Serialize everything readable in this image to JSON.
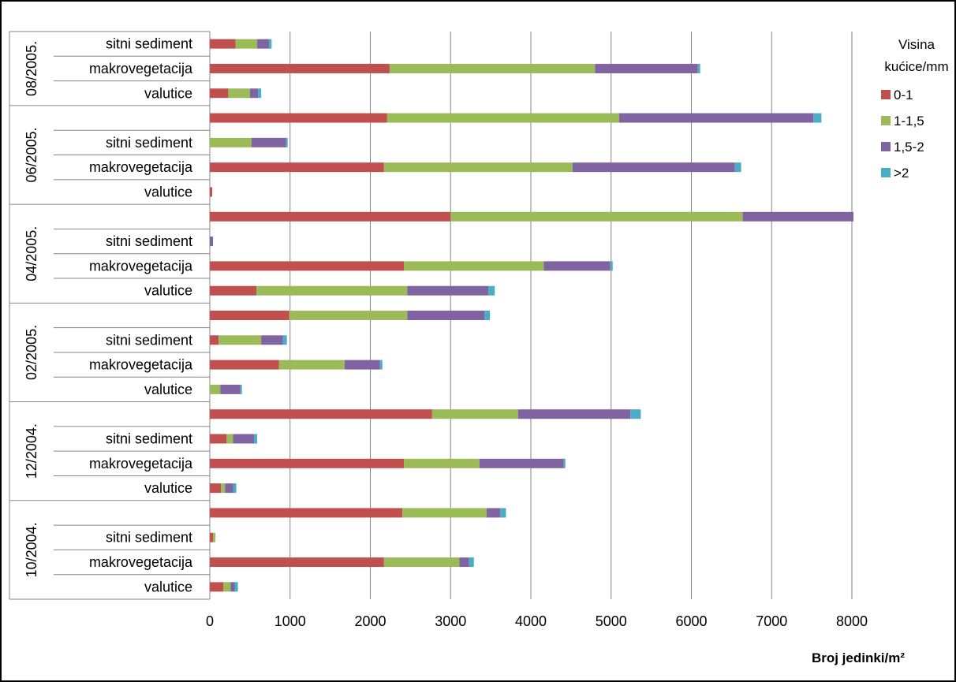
{
  "chart_data": {
    "type": "bar",
    "orientation": "horizontal",
    "stacked": true,
    "title": "",
    "xlabel": "Broj jedinki/m²",
    "ylabel": "",
    "xlim": [
      0,
      8000
    ],
    "x_ticks": [
      0,
      1000,
      2000,
      3000,
      4000,
      5000,
      6000,
      7000,
      8000
    ],
    "grid": "vertical",
    "legend_title": "Visina kućice/mm",
    "legend_position": "right",
    "series": [
      {
        "name": "0-1",
        "color": "#c0504d"
      },
      {
        "name": "1-1,5",
        "color": "#9bbb59"
      },
      {
        "name": "1,5-2",
        "color": "#8064a2"
      },
      {
        "name": ">2",
        "color": "#4bacc6"
      }
    ],
    "groups": [
      {
        "label": "08/2005.",
        "rows": [
          {
            "label": "sitni sediment",
            "values": [
              320,
              270,
              150,
              30
            ]
          },
          {
            "label": "makrovegetacija",
            "values": [
              2240,
              2560,
              1280,
              30
            ]
          },
          {
            "label": "valutice",
            "values": [
              230,
              270,
              100,
              40
            ]
          }
        ]
      },
      {
        "label": "06/2005.",
        "rows": [
          {
            "label": "",
            "values": [
              2210,
              2890,
              2420,
              100
            ]
          },
          {
            "label": "sitni sediment",
            "values": [
              0,
              520,
              430,
              20
            ]
          },
          {
            "label": "makrovegetacija",
            "values": [
              2170,
              2350,
              2020,
              80
            ]
          },
          {
            "label": "valutice",
            "values": [
              30,
              0,
              0,
              0
            ]
          }
        ]
      },
      {
        "label": "04/2005.",
        "rows": [
          {
            "label": "",
            "values": [
              3000,
              3640,
              1380,
              0
            ]
          },
          {
            "label": "sitni sediment",
            "values": [
              0,
              0,
              40,
              0
            ]
          },
          {
            "label": "makrovegetacija",
            "values": [
              2420,
              1740,
              830,
              30
            ]
          },
          {
            "label": "valutice",
            "values": [
              580,
              1880,
              1010,
              80
            ]
          }
        ]
      },
      {
        "label": "02/2005.",
        "rows": [
          {
            "label": "",
            "values": [
              990,
              1470,
              960,
              70
            ]
          },
          {
            "label": "sitni sediment",
            "values": [
              110,
              530,
              270,
              50
            ]
          },
          {
            "label": "makrovegetacija",
            "values": [
              860,
              820,
              440,
              30
            ]
          },
          {
            "label": "valutice",
            "values": [
              0,
              130,
              250,
              20
            ]
          }
        ]
      },
      {
        "label": "12/2004.",
        "rows": [
          {
            "label": "",
            "values": [
              2770,
              1070,
              1400,
              130
            ]
          },
          {
            "label": "sitni sediment",
            "values": [
              210,
              80,
              260,
              40
            ]
          },
          {
            "label": "makrovegetacija",
            "values": [
              2420,
              940,
              1050,
              20
            ]
          },
          {
            "label": "valutice",
            "values": [
              140,
              50,
              100,
              40
            ]
          }
        ]
      },
      {
        "label": "10/2004.",
        "rows": [
          {
            "label": "",
            "values": [
              2400,
              1050,
              170,
              70
            ]
          },
          {
            "label": "sitni sediment",
            "values": [
              40,
              30,
              0,
              0
            ]
          },
          {
            "label": "makrovegetacija",
            "values": [
              2170,
              940,
              120,
              60
            ]
          },
          {
            "label": "valutice",
            "values": [
              170,
              90,
              50,
              40
            ]
          }
        ]
      }
    ]
  }
}
